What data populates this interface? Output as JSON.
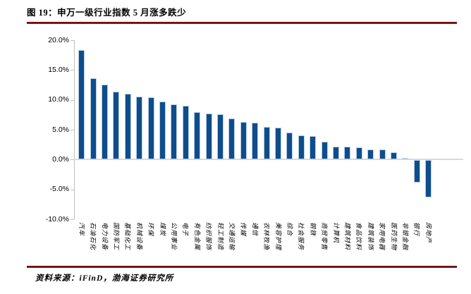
{
  "figure": {
    "title": "图 19：申万一级行业指数 5 月涨多跌少"
  },
  "footer": {
    "source": "资料来源：iFinD，渤海证券研究所"
  },
  "colors": {
    "bar_fill": "#0E4D8C",
    "bar_border": "#B9CDE5",
    "axis": "#BFBFBF",
    "zero_line": "#D9D9D9",
    "rule_red": "#8E1618"
  },
  "chart_data": {
    "type": "bar",
    "title": "申万一级行业指数5月涨多跌少",
    "categories": [
      "汽车",
      "石油石化",
      "电力设备",
      "国防军工",
      "基础化工",
      "机械设备",
      "环保",
      "煤炭",
      "公用事业",
      "电子",
      "有色金属",
      "纺织服饰",
      "轻工制造",
      "交通运输",
      "传媒",
      "通信",
      "农林牧渔",
      "美容护理",
      "综合",
      "社会服务",
      "钢铁",
      "商贸零售",
      "计算机",
      "建筑材料",
      "食品饮料",
      "建筑装饰",
      "家用电器",
      "医药生物",
      "非银金融",
      "银行",
      "房地产"
    ],
    "values": [
      18.4,
      13.6,
      12.6,
      11.4,
      11.0,
      10.6,
      10.4,
      9.7,
      9.2,
      9.0,
      7.9,
      7.7,
      7.6,
      6.9,
      6.3,
      6.2,
      5.5,
      5.4,
      4.5,
      4.1,
      3.9,
      3.0,
      2.2,
      2.2,
      2.0,
      1.7,
      1.7,
      1.2,
      0.3,
      -3.7,
      -6.2
    ],
    "value_unit": "%",
    "xlabel": "",
    "ylabel": "",
    "ylim": [
      -10,
      20
    ],
    "yticks": [
      "20.0%",
      "15.0%",
      "10.0%",
      "5.0%",
      "0.0%",
      "-5.0%",
      "-10.0%"
    ],
    "grid": false,
    "legend": false,
    "sorted": "descending"
  }
}
